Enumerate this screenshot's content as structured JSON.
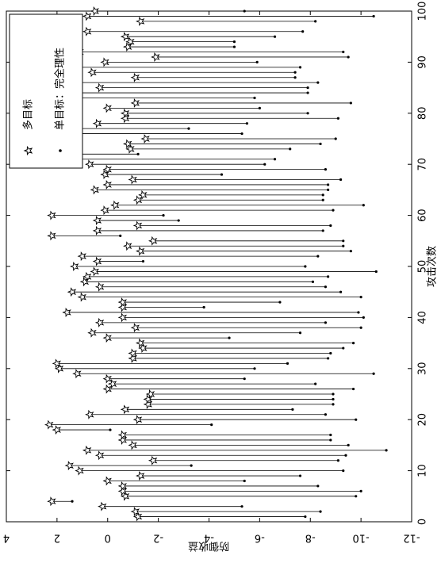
{
  "chart_data": {
    "type": "stem-pair",
    "x_label": "攻击次数",
    "y_label": "防御收益",
    "x": [
      1,
      2,
      3,
      4,
      5,
      6,
      7,
      8,
      9,
      10,
      11,
      12,
      13,
      14,
      15,
      16,
      17,
      18,
      19,
      20,
      21,
      22,
      23,
      24,
      25,
      26,
      27,
      28,
      29,
      30,
      31,
      32,
      33,
      34,
      35,
      36,
      37,
      38,
      39,
      40,
      41,
      42,
      43,
      44,
      45,
      46,
      47,
      48,
      49,
      50,
      51,
      52,
      53,
      54,
      55,
      56,
      57,
      58,
      59,
      60,
      61,
      62,
      63,
      64,
      65,
      66,
      67,
      68,
      69,
      70,
      71,
      72,
      73,
      74,
      75,
      76,
      77,
      78,
      79,
      80,
      81,
      82,
      83,
      84,
      85,
      86,
      87,
      88,
      89,
      90,
      91,
      92,
      93,
      94,
      95,
      96,
      97,
      98,
      99,
      100
    ],
    "series": [
      {
        "name": "多目标",
        "color": "#000000",
        "marker": "star",
        "values": [
          -1.2,
          -1.1,
          0.2,
          2.2,
          -0.7,
          -0.6,
          -0.6,
          0.0,
          -1.3,
          1.1,
          1.5,
          -1.8,
          0.3,
          0.8,
          -1.0,
          -0.6,
          -0.6,
          2.0,
          2.3,
          -1.2,
          0.7,
          -0.7,
          -1.6,
          -1.6,
          -1.7,
          0.0,
          -0.2,
          0.0,
          1.2,
          1.9,
          2.0,
          -1.0,
          -1.0,
          -1.4,
          -1.3,
          0.0,
          0.6,
          -1.1,
          0.3,
          -0.6,
          1.6,
          -0.6,
          -0.6,
          1.0,
          1.4,
          0.3,
          0.9,
          0.8,
          0.5,
          1.3,
          0.4,
          1.0,
          -1.3,
          -0.8,
          -1.8,
          2.2,
          0.4,
          -1.2,
          0.4,
          2.2,
          0.1,
          -0.3,
          -1.2,
          -1.4,
          0.5,
          0.0,
          -1.0,
          0.1,
          0.0,
          0.7,
          1.7,
          1.6,
          -0.9,
          -0.8,
          -1.5,
          1.4,
          1.5,
          0.4,
          -0.7,
          -0.7,
          0.0,
          -1.1,
          1.7,
          1.4,
          0.3,
          2.2,
          -1.1,
          0.6,
          1.4,
          0.1,
          -1.9,
          1.1,
          -0.8,
          -0.9,
          -0.7,
          0.8,
          2.3,
          -1.3,
          0.8,
          0.5
        ]
      },
      {
        "name": "单目标：完全理性",
        "color": "#000000",
        "marker": "dot",
        "values": [
          -7.8,
          -8.4,
          -5.3,
          1.4,
          -9.8,
          -10.0,
          -8.3,
          -5.4,
          -7.6,
          -9.3,
          -3.3,
          -9.1,
          -9.4,
          -11.0,
          -9.5,
          -8.8,
          -8.8,
          -0.1,
          -4.1,
          -9.8,
          -8.6,
          -7.3,
          -8.9,
          -8.9,
          -8.9,
          -9.7,
          -8.2,
          -5.4,
          -10.5,
          -5.8,
          -7.1,
          -8.7,
          -8.8,
          -9.3,
          -9.7,
          -4.8,
          -7.6,
          -10.0,
          -8.6,
          -10.1,
          -9.9,
          -3.8,
          -6.8,
          -10.0,
          -9.2,
          -8.6,
          -8.1,
          -8.7,
          -10.6,
          -7.8,
          -1.4,
          -8.3,
          -9.6,
          -9.3,
          -9.3,
          -0.5,
          -8.5,
          -8.8,
          -2.8,
          -2.2,
          -8.9,
          -10.1,
          -8.5,
          -8.5,
          -8.7,
          -8.7,
          -9.2,
          -4.5,
          -8.6,
          -6.2,
          -6.6,
          -1.2,
          -7.2,
          -8.4,
          -9.0,
          -5.3,
          -3.2,
          -5.5,
          -9.1,
          -7.9,
          -6.0,
          -9.6,
          -5.8,
          -7.9,
          -7.9,
          -8.3,
          -7.4,
          -7.4,
          -7.6,
          -5.9,
          -9.5,
          -9.3,
          -5.0,
          -5.0,
          -6.6,
          -7.7,
          1.2,
          -8.2,
          -10.5,
          -5.4
        ]
      }
    ],
    "xlim": [
      0,
      100
    ],
    "xticks": [
      0,
      10,
      20,
      30,
      40,
      50,
      60,
      70,
      80,
      90,
      100
    ],
    "ylim": [
      -12,
      4
    ],
    "yticks": [
      -12,
      -10,
      -8,
      -6,
      -4,
      -2,
      0,
      2,
      4
    ],
    "legend": "upper right"
  }
}
